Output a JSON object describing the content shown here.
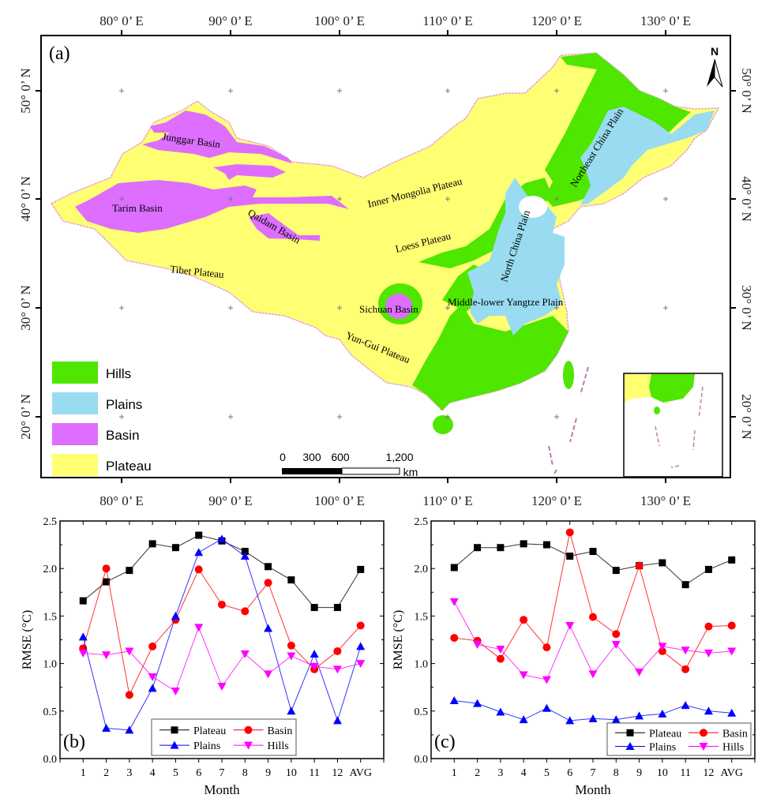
{
  "map": {
    "panel_label": "(a)",
    "lon_labels": [
      "80° 0’ E",
      "90° 0’ E",
      "100° 0’ E",
      "110° 0’ E",
      "120° 0’ E",
      "130° 0’ E"
    ],
    "lat_labels": [
      "50° 0’ N",
      "40° 0’ N",
      "30° 0’ N",
      "20° 0’ N"
    ],
    "region_labels": {
      "junggar": "Junggar Basin",
      "tarim": "Tarim Basin",
      "qaidam": "Qaidam Basin",
      "inner_mongolia": "Inner Mongolia Plateau",
      "loess": "Loess Plateau",
      "tibet": "Tibet Plateau",
      "sichuan": "Sichuan Basin",
      "yungui": "Yun-Gui Plateau",
      "north_china": "North China Plain",
      "northeast_china": "Northeast China Plain",
      "yangtze": "Middle-lower Yangtze Plain"
    },
    "legend": [
      {
        "label": "Hills",
        "color": "#4fe600"
      },
      {
        "label": "Plains",
        "color": "#99dbf0"
      },
      {
        "label": "Basin",
        "color": "#dd6eff"
      },
      {
        "label": "Plateau",
        "color": "#ffff73"
      }
    ],
    "scale_bar": {
      "ticks": [
        "0",
        "300",
        "600",
        "1,200"
      ],
      "unit": "km"
    },
    "north_label": "N"
  },
  "chart_data": [
    {
      "type": "line",
      "panel_label": "(b)",
      "title": "",
      "xlabel": "Month",
      "ylabel": "RMSE (°C)",
      "categories": [
        "1",
        "2",
        "3",
        "4",
        "5",
        "6",
        "7",
        "8",
        "9",
        "10",
        "11",
        "12",
        "AVG"
      ],
      "ylim": [
        0,
        2.5
      ],
      "yticks": [
        "0.0",
        "0.5",
        "1.0",
        "1.5",
        "2.0",
        "2.5"
      ],
      "legend_position": "bottom-center",
      "series": [
        {
          "name": "Plateau",
          "color": "#000000",
          "marker": "square",
          "values": [
            1.66,
            1.86,
            1.98,
            2.26,
            2.22,
            2.35,
            2.29,
            2.18,
            2.02,
            1.88,
            1.59,
            1.59,
            1.99
          ]
        },
        {
          "name": "Basin",
          "color": "#ff0000",
          "marker": "circle",
          "values": [
            1.16,
            2.0,
            0.67,
            1.18,
            1.46,
            1.99,
            1.62,
            1.55,
            1.85,
            1.19,
            0.94,
            1.13,
            1.4
          ]
        },
        {
          "name": "Plains",
          "color": "#0000ff",
          "marker": "triangle-up",
          "values": [
            1.28,
            0.32,
            0.3,
            0.74,
            1.5,
            2.17,
            2.31,
            2.13,
            1.37,
            0.5,
            1.1,
            0.4,
            1.18
          ]
        },
        {
          "name": "Hills",
          "color": "#ff00ff",
          "marker": "triangle-down",
          "values": [
            1.11,
            1.09,
            1.13,
            0.86,
            0.71,
            1.38,
            0.76,
            1.1,
            0.89,
            1.08,
            0.97,
            0.94,
            1.0
          ]
        }
      ]
    },
    {
      "type": "line",
      "panel_label": "(c)",
      "title": "",
      "xlabel": "Month",
      "ylabel": "RMSE (°C)",
      "categories": [
        "1",
        "2",
        "3",
        "4",
        "5",
        "6",
        "7",
        "8",
        "9",
        "10",
        "11",
        "12",
        "AVG"
      ],
      "ylim": [
        0,
        2.5
      ],
      "yticks": [
        "0.0",
        "0.5",
        "1.0",
        "1.5",
        "2.0",
        "2.5"
      ],
      "legend_position": "bottom-right",
      "series": [
        {
          "name": "Plateau",
          "color": "#000000",
          "marker": "square",
          "values": [
            2.01,
            2.22,
            2.22,
            2.26,
            2.25,
            2.13,
            2.18,
            1.98,
            2.03,
            2.06,
            1.83,
            1.99,
            2.09
          ]
        },
        {
          "name": "Basin",
          "color": "#ff0000",
          "marker": "circle",
          "values": [
            1.27,
            1.24,
            1.05,
            1.46,
            1.17,
            2.38,
            1.49,
            1.31,
            2.03,
            1.13,
            0.94,
            1.39,
            1.4
          ]
        },
        {
          "name": "Plains",
          "color": "#0000ff",
          "marker": "triangle-up",
          "values": [
            0.61,
            0.58,
            0.49,
            0.41,
            0.53,
            0.4,
            0.42,
            0.41,
            0.45,
            0.47,
            0.56,
            0.5,
            0.48
          ]
        },
        {
          "name": "Hills",
          "color": "#ff00ff",
          "marker": "triangle-down",
          "values": [
            1.65,
            1.2,
            1.15,
            0.88,
            0.83,
            1.4,
            0.89,
            1.2,
            0.91,
            1.18,
            1.14,
            1.11,
            1.13
          ]
        }
      ]
    }
  ]
}
